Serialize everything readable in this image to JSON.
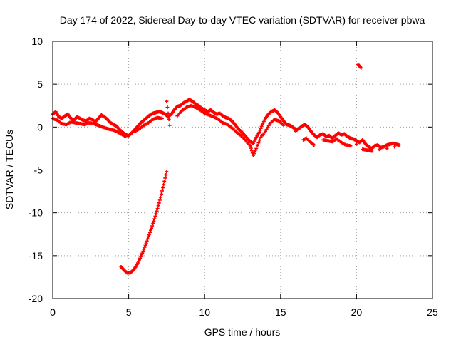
{
  "chart_data": {
    "type": "scatter",
    "title": "Day 174 of 2022, Sidereal Day-to-day VTEC variation (SDTVAR) for receiver pbwa",
    "xlabel": "GPS time / hours",
    "ylabel": "SDTVAR / TECUs",
    "xlim": [
      0,
      25
    ],
    "ylim": [
      -20,
      10
    ],
    "xticks": [
      0,
      5,
      10,
      15,
      20,
      25
    ],
    "yticks": [
      -20,
      -15,
      -10,
      -5,
      0,
      5,
      10
    ],
    "xtick_labels": [
      "0",
      "5",
      "10",
      "15",
      "20",
      "25"
    ],
    "ytick_labels": [
      "-20",
      "-15",
      "-10",
      "-5",
      "0",
      "5",
      "10"
    ],
    "grid": true,
    "series": [
      {
        "name": "main track",
        "color": "#ff0000",
        "points": [
          [
            0.0,
            1.5
          ],
          [
            0.2,
            1.8
          ],
          [
            0.4,
            1.2
          ],
          [
            0.6,
            1.0
          ],
          [
            0.8,
            1.3
          ],
          [
            1.0,
            1.5
          ],
          [
            1.2,
            1.0
          ],
          [
            1.4,
            0.8
          ],
          [
            1.6,
            1.2
          ],
          [
            1.8,
            1.0
          ],
          [
            2.0,
            0.8
          ],
          [
            2.2,
            0.7
          ],
          [
            2.4,
            1.0
          ],
          [
            2.6,
            0.9
          ],
          [
            2.8,
            0.6
          ],
          [
            3.0,
            1.0
          ],
          [
            3.2,
            1.4
          ],
          [
            3.4,
            1.2
          ],
          [
            3.6,
            0.9
          ],
          [
            3.8,
            0.5
          ],
          [
            4.0,
            0.3
          ],
          [
            4.2,
            0.1
          ],
          [
            4.4,
            -0.3
          ],
          [
            4.6,
            -0.6
          ],
          [
            4.8,
            -0.9
          ],
          [
            5.0,
            -1.0
          ],
          [
            5.2,
            -0.7
          ],
          [
            5.4,
            -0.3
          ],
          [
            5.6,
            0.1
          ],
          [
            5.8,
            0.5
          ],
          [
            6.0,
            0.8
          ],
          [
            6.2,
            1.1
          ],
          [
            6.4,
            1.4
          ],
          [
            6.6,
            1.6
          ],
          [
            6.8,
            1.7
          ],
          [
            7.0,
            1.8
          ],
          [
            7.2,
            1.7
          ],
          [
            7.4,
            1.5
          ],
          [
            7.6,
            1.2
          ],
          [
            7.8,
            1.5
          ],
          [
            8.0,
            2.0
          ],
          [
            8.2,
            2.4
          ],
          [
            8.4,
            2.5
          ],
          [
            8.6,
            2.8
          ],
          [
            8.8,
            3.0
          ],
          [
            9.0,
            3.2
          ],
          [
            9.2,
            3.0
          ],
          [
            9.4,
            2.7
          ],
          [
            9.6,
            2.5
          ],
          [
            9.8,
            2.2
          ],
          [
            10.0,
            2.0
          ],
          [
            10.2,
            1.8
          ],
          [
            10.4,
            2.0
          ],
          [
            10.6,
            1.7
          ],
          [
            10.8,
            1.5
          ],
          [
            11.0,
            1.6
          ],
          [
            11.2,
            1.3
          ],
          [
            11.4,
            1.1
          ],
          [
            11.6,
            1.0
          ],
          [
            11.8,
            0.7
          ],
          [
            12.0,
            0.3
          ],
          [
            12.2,
            -0.2
          ],
          [
            12.4,
            -0.5
          ],
          [
            12.6,
            -0.9
          ],
          [
            12.8,
            -1.3
          ],
          [
            13.0,
            -1.7
          ],
          [
            13.2,
            -1.9
          ],
          [
            13.4,
            -1.2
          ],
          [
            13.6,
            -0.6
          ],
          [
            13.8,
            0.3
          ],
          [
            14.0,
            1.0
          ],
          [
            14.2,
            1.5
          ],
          [
            14.4,
            1.8
          ],
          [
            14.6,
            2.0
          ],
          [
            14.8,
            1.7
          ],
          [
            15.0,
            1.2
          ],
          [
            15.2,
            0.7
          ],
          [
            15.4,
            0.3
          ],
          [
            15.6,
            0.2
          ],
          [
            15.8,
            0.0
          ],
          [
            16.0,
            -0.3
          ],
          [
            16.2,
            -0.2
          ],
          [
            16.4,
            0.1
          ],
          [
            16.6,
            0.3
          ],
          [
            16.8,
            0.0
          ],
          [
            17.0,
            -0.5
          ],
          [
            17.2,
            -0.9
          ],
          [
            17.4,
            -1.2
          ],
          [
            17.6,
            -0.9
          ],
          [
            17.8,
            -0.8
          ],
          [
            18.0,
            -1.1
          ],
          [
            18.2,
            -1.0
          ],
          [
            18.4,
            -1.3
          ],
          [
            18.6,
            -1.0
          ],
          [
            18.8,
            -0.7
          ],
          [
            19.0,
            -0.9
          ],
          [
            19.2,
            -0.8
          ],
          [
            19.4,
            -1.1
          ],
          [
            19.6,
            -1.3
          ],
          [
            19.8,
            -1.4
          ],
          [
            20.0,
            -1.6
          ],
          [
            20.2,
            -1.8
          ],
          [
            20.4,
            -1.5
          ],
          [
            20.6,
            -2.0
          ],
          [
            20.8,
            -2.3
          ],
          [
            21.0,
            -2.5
          ],
          [
            21.2,
            -2.2
          ],
          [
            21.4,
            -2.1
          ],
          [
            21.6,
            -2.4
          ],
          [
            21.8,
            -2.3
          ],
          [
            22.0,
            -2.1
          ],
          [
            22.2,
            -2.0
          ],
          [
            22.4,
            -1.9
          ],
          [
            22.6,
            -2.0
          ],
          [
            22.8,
            -2.1
          ]
        ]
      },
      {
        "name": "secondary track",
        "color": "#ff0000",
        "points": [
          [
            0.0,
            1.0
          ],
          [
            0.3,
            0.8
          ],
          [
            0.6,
            0.4
          ],
          [
            0.9,
            0.3
          ],
          [
            1.2,
            0.6
          ],
          [
            1.5,
            0.5
          ],
          [
            1.8,
            0.4
          ],
          [
            2.1,
            0.3
          ],
          [
            2.4,
            0.5
          ],
          [
            2.7,
            0.4
          ],
          [
            3.0,
            0.2
          ],
          [
            3.3,
            0.0
          ],
          [
            3.6,
            -0.2
          ],
          [
            3.9,
            -0.3
          ],
          [
            4.2,
            -0.5
          ],
          [
            4.5,
            -0.8
          ],
          [
            4.8,
            -1.1
          ],
          [
            5.4,
            -0.5
          ],
          [
            5.7,
            -0.2
          ],
          [
            6.0,
            0.2
          ],
          [
            6.3,
            0.5
          ],
          [
            6.6,
            0.9
          ],
          [
            6.9,
            1.1
          ],
          [
            7.2,
            1.0
          ],
          [
            8.2,
            1.3
          ],
          [
            8.5,
            1.9
          ],
          [
            8.8,
            2.3
          ],
          [
            9.1,
            2.5
          ],
          [
            9.4,
            2.3
          ],
          [
            9.7,
            2.0
          ],
          [
            10.0,
            1.6
          ],
          [
            10.3,
            1.4
          ],
          [
            10.6,
            1.2
          ],
          [
            10.9,
            0.9
          ],
          [
            11.2,
            0.5
          ],
          [
            11.5,
            0.3
          ],
          [
            11.8,
            -0.1
          ],
          [
            12.1,
            -0.6
          ],
          [
            12.4,
            -1.0
          ],
          [
            12.7,
            -1.6
          ],
          [
            13.0,
            -2.2
          ],
          [
            13.2,
            -3.3
          ],
          [
            13.4,
            -2.5
          ],
          [
            13.7,
            -1.2
          ],
          [
            14.0,
            -0.5
          ],
          [
            14.3,
            0.4
          ],
          [
            14.6,
            0.9
          ],
          [
            14.9,
            0.7
          ],
          [
            15.2,
            0.2
          ],
          [
            16.0,
            -0.5
          ],
          [
            16.5,
            -1.5
          ],
          [
            16.7,
            -1.3
          ],
          [
            17.0,
            -1.8
          ],
          [
            17.2,
            -2.1
          ],
          [
            17.8,
            -1.5
          ],
          [
            18.1,
            -1.6
          ],
          [
            18.4,
            -1.7
          ],
          [
            18.7,
            -1.4
          ],
          [
            19.0,
            -1.8
          ],
          [
            19.3,
            -2.1
          ],
          [
            19.6,
            -2.2
          ],
          [
            20.0,
            -2.0
          ],
          [
            20.4,
            -2.6
          ],
          [
            20.7,
            -2.7
          ],
          [
            21.0,
            -2.8
          ],
          [
            21.5,
            -2.6
          ],
          [
            22.0,
            -2.5
          ],
          [
            22.5,
            -2.3
          ]
        ]
      },
      {
        "name": "dip segment",
        "color": "#ff0000",
        "points": [
          [
            4.5,
            -16.3
          ],
          [
            4.7,
            -16.7
          ],
          [
            4.9,
            -17.0
          ],
          [
            5.1,
            -17.0
          ],
          [
            5.3,
            -16.7
          ],
          [
            5.5,
            -16.2
          ],
          [
            5.7,
            -15.5
          ],
          [
            5.9,
            -14.7
          ],
          [
            6.1,
            -13.8
          ],
          [
            6.3,
            -12.8
          ],
          [
            6.5,
            -11.8
          ],
          [
            6.7,
            -10.7
          ],
          [
            6.9,
            -9.5
          ],
          [
            7.1,
            -8.2
          ],
          [
            7.3,
            -6.7
          ],
          [
            7.5,
            -5.2
          ]
        ]
      },
      {
        "name": "outliers",
        "color": "#ff0000",
        "points": [
          [
            7.5,
            3.0
          ],
          [
            7.7,
            0.2
          ],
          [
            20.1,
            7.3
          ],
          [
            20.3,
            6.9
          ]
        ]
      }
    ]
  }
}
